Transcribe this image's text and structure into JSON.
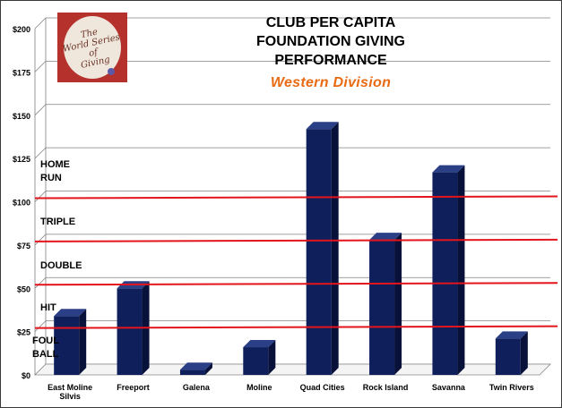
{
  "title": "CLUB PER CAPITA\nFOUNDATION GIVING\nPERFORMANCE",
  "subtitle": "Western Division",
  "logo": {
    "text": "The\nWorld Series\nof\nGiving",
    "background_color": "#b4312c",
    "disc_color": "#efe6dc",
    "text_color": "#6b3326"
  },
  "chart_data": {
    "type": "bar",
    "title": "CLUB PER CAPITA FOUNDATION GIVING PERFORMANCE",
    "subtitle": "Western Division",
    "xlabel": "",
    "ylabel": "",
    "categories": [
      "East Moline\nSilvis",
      "Freeport",
      "Galena",
      "Moline",
      "Quad Cities",
      "Rock Island",
      "Savanna",
      "Twin Rivers"
    ],
    "values": [
      34,
      50,
      3,
      16,
      142,
      78,
      117,
      21
    ],
    "ylim": [
      0,
      200
    ],
    "y_tick_values": [
      0,
      25,
      50,
      75,
      100,
      125,
      150,
      175,
      200
    ],
    "y_tick_labels": [
      "$0",
      "$25",
      "$50",
      "$75",
      "$100",
      "$125",
      "$150",
      "$175",
      "$200"
    ],
    "grid": true,
    "three_d": true,
    "bar_color": "#0e1f5c",
    "reference_lines": [
      {
        "label": "HIT",
        "value": 25
      },
      {
        "label": "DOUBLE",
        "value": 50
      },
      {
        "label": "TRIPLE",
        "value": 75
      },
      {
        "label": "HOME\nRUN",
        "value": 100
      }
    ],
    "reference_line_color": "#e3141b",
    "extra_labels": [
      {
        "label": "FOUL\nBALL"
      }
    ]
  }
}
